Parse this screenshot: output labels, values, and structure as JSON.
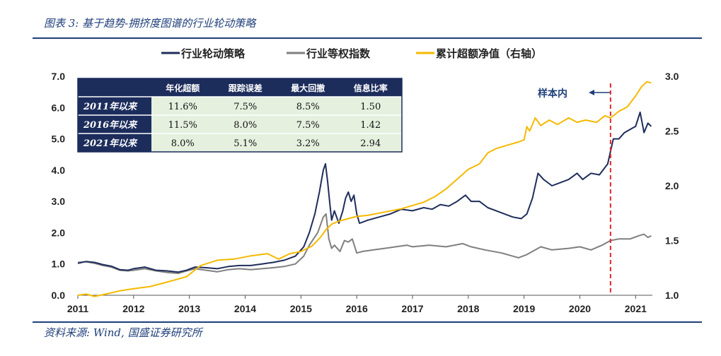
{
  "header": {
    "title": "图表 3: 基于趋势-拥挤度图谱的行业轮动策略"
  },
  "footer": {
    "source": "资料来源: Wind, 国盛证券研究所"
  },
  "chart_data": {
    "type": "line",
    "x_range": [
      2011.0,
      2021.3
    ],
    "x_ticks": [
      2011,
      2012,
      2013,
      2014,
      2015,
      2016,
      2017,
      2018,
      2019,
      2020,
      2021
    ],
    "x_tick_labels": [
      "2011",
      "2012",
      "2013",
      "2014",
      "2015",
      "2016",
      "2017",
      "2018",
      "2019",
      "2020",
      "2021"
    ],
    "y_left": {
      "range": [
        0.0,
        7.0
      ],
      "ticks": [
        0,
        1,
        2,
        3,
        4,
        5,
        6,
        7
      ],
      "tick_labels": [
        "0.0",
        "1.0",
        "2.0",
        "3.0",
        "4.0",
        "5.0",
        "6.0",
        "7.0"
      ]
    },
    "y_right": {
      "range": [
        1.0,
        3.0
      ],
      "ticks": [
        1.0,
        1.5,
        2.0,
        2.5,
        3.0
      ],
      "tick_labels": [
        "1.0",
        "1.5",
        "2.0",
        "2.5",
        "3.0"
      ]
    },
    "legend": {
      "position": "top-center"
    },
    "series": [
      {
        "name": "行业轮动策略",
        "axis": "left",
        "color": "#1f2d5c",
        "points": [
          [
            2011.0,
            1.02
          ],
          [
            2011.15,
            1.08
          ],
          [
            2011.3,
            1.05
          ],
          [
            2011.45,
            0.98
          ],
          [
            2011.6,
            0.93
          ],
          [
            2011.75,
            0.82
          ],
          [
            2011.9,
            0.8
          ],
          [
            2012.0,
            0.85
          ],
          [
            2012.2,
            0.9
          ],
          [
            2012.4,
            0.8
          ],
          [
            2012.6,
            0.78
          ],
          [
            2012.8,
            0.74
          ],
          [
            2012.95,
            0.8
          ],
          [
            2013.1,
            0.9
          ],
          [
            2013.3,
            0.88
          ],
          [
            2013.5,
            0.85
          ],
          [
            2013.7,
            0.92
          ],
          [
            2013.9,
            0.95
          ],
          [
            2014.1,
            0.95
          ],
          [
            2014.3,
            1.0
          ],
          [
            2014.5,
            1.05
          ],
          [
            2014.7,
            1.12
          ],
          [
            2014.9,
            1.25
          ],
          [
            2015.05,
            1.55
          ],
          [
            2015.15,
            2.0
          ],
          [
            2015.25,
            2.6
          ],
          [
            2015.33,
            3.3
          ],
          [
            2015.4,
            4.0
          ],
          [
            2015.44,
            4.2
          ],
          [
            2015.48,
            3.6
          ],
          [
            2015.52,
            2.9
          ],
          [
            2015.55,
            2.4
          ],
          [
            2015.6,
            2.7
          ],
          [
            2015.68,
            2.3
          ],
          [
            2015.75,
            2.7
          ],
          [
            2015.8,
            3.1
          ],
          [
            2015.85,
            3.3
          ],
          [
            2015.9,
            3.0
          ],
          [
            2015.95,
            3.2
          ],
          [
            2016.0,
            2.6
          ],
          [
            2016.05,
            2.3
          ],
          [
            2016.2,
            2.4
          ],
          [
            2016.4,
            2.5
          ],
          [
            2016.6,
            2.6
          ],
          [
            2016.8,
            2.75
          ],
          [
            2017.0,
            2.7
          ],
          [
            2017.2,
            2.8
          ],
          [
            2017.35,
            2.75
          ],
          [
            2017.5,
            2.9
          ],
          [
            2017.65,
            2.85
          ],
          [
            2017.8,
            3.0
          ],
          [
            2017.95,
            3.2
          ],
          [
            2018.05,
            3.0
          ],
          [
            2018.2,
            3.0
          ],
          [
            2018.35,
            2.8
          ],
          [
            2018.5,
            2.7
          ],
          [
            2018.65,
            2.6
          ],
          [
            2018.8,
            2.5
          ],
          [
            2018.95,
            2.45
          ],
          [
            2019.05,
            2.6
          ],
          [
            2019.15,
            3.1
          ],
          [
            2019.25,
            3.9
          ],
          [
            2019.35,
            3.7
          ],
          [
            2019.5,
            3.5
          ],
          [
            2019.65,
            3.6
          ],
          [
            2019.8,
            3.7
          ],
          [
            2019.95,
            3.9
          ],
          [
            2020.05,
            3.7
          ],
          [
            2020.2,
            3.9
          ],
          [
            2020.35,
            3.85
          ],
          [
            2020.5,
            4.2
          ],
          [
            2020.6,
            5.0
          ],
          [
            2020.7,
            5.0
          ],
          [
            2020.8,
            5.2
          ],
          [
            2020.9,
            5.3
          ],
          [
            2021.0,
            5.4
          ],
          [
            2021.08,
            5.85
          ],
          [
            2021.15,
            5.2
          ],
          [
            2021.22,
            5.5
          ],
          [
            2021.28,
            5.4
          ]
        ]
      },
      {
        "name": "行业等权指数",
        "axis": "left",
        "color": "#7f7f7f",
        "points": [
          [
            2011.0,
            1.05
          ],
          [
            2011.15,
            1.07
          ],
          [
            2011.3,
            1.02
          ],
          [
            2011.45,
            0.95
          ],
          [
            2011.6,
            0.9
          ],
          [
            2011.75,
            0.8
          ],
          [
            2011.9,
            0.78
          ],
          [
            2012.0,
            0.8
          ],
          [
            2012.2,
            0.85
          ],
          [
            2012.4,
            0.78
          ],
          [
            2012.6,
            0.73
          ],
          [
            2012.8,
            0.7
          ],
          [
            2012.95,
            0.78
          ],
          [
            2013.1,
            0.85
          ],
          [
            2013.3,
            0.8
          ],
          [
            2013.5,
            0.75
          ],
          [
            2013.7,
            0.82
          ],
          [
            2013.9,
            0.85
          ],
          [
            2014.1,
            0.82
          ],
          [
            2014.3,
            0.85
          ],
          [
            2014.5,
            0.88
          ],
          [
            2014.7,
            0.92
          ],
          [
            2014.9,
            1.0
          ],
          [
            2015.05,
            1.25
          ],
          [
            2015.15,
            1.6
          ],
          [
            2015.3,
            2.0
          ],
          [
            2015.4,
            2.5
          ],
          [
            2015.45,
            2.6
          ],
          [
            2015.5,
            1.8
          ],
          [
            2015.55,
            1.5
          ],
          [
            2015.6,
            1.6
          ],
          [
            2015.7,
            1.4
          ],
          [
            2015.78,
            1.75
          ],
          [
            2015.85,
            1.7
          ],
          [
            2015.92,
            1.8
          ],
          [
            2016.0,
            1.35
          ],
          [
            2016.1,
            1.4
          ],
          [
            2016.3,
            1.45
          ],
          [
            2016.5,
            1.5
          ],
          [
            2016.7,
            1.55
          ],
          [
            2016.9,
            1.6
          ],
          [
            2017.0,
            1.55
          ],
          [
            2017.3,
            1.6
          ],
          [
            2017.6,
            1.55
          ],
          [
            2017.9,
            1.65
          ],
          [
            2018.05,
            1.55
          ],
          [
            2018.3,
            1.45
          ],
          [
            2018.6,
            1.35
          ],
          [
            2018.9,
            1.2
          ],
          [
            2019.05,
            1.3
          ],
          [
            2019.3,
            1.55
          ],
          [
            2019.5,
            1.45
          ],
          [
            2019.8,
            1.5
          ],
          [
            2020.0,
            1.55
          ],
          [
            2020.2,
            1.45
          ],
          [
            2020.4,
            1.6
          ],
          [
            2020.55,
            1.75
          ],
          [
            2020.7,
            1.8
          ],
          [
            2020.9,
            1.8
          ],
          [
            2021.05,
            1.9
          ],
          [
            2021.15,
            1.95
          ],
          [
            2021.22,
            1.85
          ],
          [
            2021.28,
            1.9
          ]
        ]
      },
      {
        "name": "累计超额净值（右轴）",
        "axis": "right",
        "color": "#f5b900",
        "points": [
          [
            2011.0,
            1.0
          ],
          [
            2011.15,
            1.01
          ],
          [
            2011.3,
            0.99
          ],
          [
            2011.5,
            1.01
          ],
          [
            2011.75,
            1.04
          ],
          [
            2012.0,
            1.06
          ],
          [
            2012.3,
            1.08
          ],
          [
            2012.6,
            1.12
          ],
          [
            2012.95,
            1.17
          ],
          [
            2013.2,
            1.27
          ],
          [
            2013.5,
            1.32
          ],
          [
            2013.8,
            1.33
          ],
          [
            2014.1,
            1.36
          ],
          [
            2014.4,
            1.38
          ],
          [
            2014.6,
            1.33
          ],
          [
            2014.8,
            1.38
          ],
          [
            2015.0,
            1.4
          ],
          [
            2015.2,
            1.45
          ],
          [
            2015.35,
            1.53
          ],
          [
            2015.45,
            1.6
          ],
          [
            2015.55,
            1.65
          ],
          [
            2015.7,
            1.68
          ],
          [
            2015.85,
            1.7
          ],
          [
            2016.0,
            1.72
          ],
          [
            2016.2,
            1.73
          ],
          [
            2016.5,
            1.76
          ],
          [
            2016.8,
            1.79
          ],
          [
            2017.0,
            1.82
          ],
          [
            2017.2,
            1.85
          ],
          [
            2017.4,
            1.9
          ],
          [
            2017.6,
            1.97
          ],
          [
            2017.8,
            2.06
          ],
          [
            2018.0,
            2.15
          ],
          [
            2018.2,
            2.2
          ],
          [
            2018.35,
            2.3
          ],
          [
            2018.5,
            2.34
          ],
          [
            2018.7,
            2.37
          ],
          [
            2018.9,
            2.4
          ],
          [
            2019.0,
            2.42
          ],
          [
            2019.05,
            2.54
          ],
          [
            2019.1,
            2.5
          ],
          [
            2019.2,
            2.62
          ],
          [
            2019.3,
            2.55
          ],
          [
            2019.45,
            2.6
          ],
          [
            2019.6,
            2.56
          ],
          [
            2019.8,
            2.62
          ],
          [
            2019.95,
            2.58
          ],
          [
            2020.1,
            2.6
          ],
          [
            2020.3,
            2.58
          ],
          [
            2020.45,
            2.64
          ],
          [
            2020.55,
            2.62
          ],
          [
            2020.7,
            2.68
          ],
          [
            2020.85,
            2.72
          ],
          [
            2021.0,
            2.82
          ],
          [
            2021.1,
            2.9
          ],
          [
            2021.2,
            2.95
          ],
          [
            2021.28,
            2.94
          ]
        ]
      }
    ],
    "annotation": {
      "text": "样本内",
      "x": 2020.55,
      "arrow": "left"
    },
    "table": {
      "columns": [
        "年化超额",
        "跟踪误差",
        "最大回撤",
        "信息比率"
      ],
      "rows": [
        {
          "label": "2011年以来",
          "values": [
            "11.6%",
            "7.5%",
            "8.5%",
            "1.50"
          ]
        },
        {
          "label": "2016年以来",
          "values": [
            "11.5%",
            "8.0%",
            "7.5%",
            "1.42"
          ]
        },
        {
          "label": "2021年以来",
          "values": [
            "8.0%",
            "5.1%",
            "3.2%",
            "2.94"
          ]
        }
      ]
    }
  }
}
